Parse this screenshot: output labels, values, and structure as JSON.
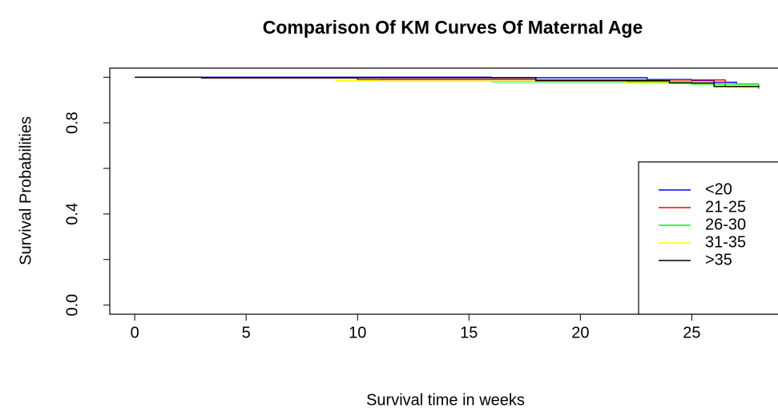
{
  "chart_data": {
    "type": "step",
    "title": "Comparison Of KM Curves Of Maternal Age",
    "x_label": "Survival time in weeks",
    "y_label": "Survival Probabilities",
    "xlim": [
      -1.12,
      29.12
    ],
    "xticks": [
      0,
      5,
      10,
      15,
      20,
      25
    ],
    "ylim": [
      -0.04,
      1.04
    ],
    "yticks": [
      {
        "value": 0,
        "label": "0.0"
      },
      {
        "value": 0.4,
        "label": "0.4"
      },
      {
        "value": 0.8,
        "label": "0.8"
      }
    ],
    "yticks_minor": [
      0.2,
      0.6,
      1
    ],
    "legend": "bottomright",
    "series": [
      {
        "name": "<20",
        "color": "#0000ff",
        "x": [
          3,
          16,
          23,
          25,
          26,
          27,
          28
        ],
        "values": [
          1,
          0.998,
          0.99,
          0.985,
          0.978,
          0.97,
          0.968
        ]
      },
      {
        "name": "21-25",
        "color": "#ff0000",
        "x": [
          3,
          10,
          18,
          26.5,
          28
        ],
        "values": [
          0.997,
          0.99,
          0.988,
          0.955,
          0.95
        ]
      },
      {
        "name": "26-30",
        "color": "#00ff00",
        "x": [
          16,
          19,
          25,
          28
        ],
        "values": [
          0.98,
          0.98,
          0.97,
          0.955
        ]
      },
      {
        "name": "31-35",
        "color": "#ffff00",
        "x": [
          9,
          11,
          22,
          26,
          28
        ],
        "values": [
          0.985,
          0.983,
          0.975,
          0.955,
          0.955
        ]
      },
      {
        "name": ">35",
        "color": "#000000",
        "x": [
          0,
          3,
          18,
          24,
          26,
          28
        ],
        "values": [
          1,
          0.998,
          0.985,
          0.975,
          0.96,
          0.955
        ]
      }
    ]
  }
}
